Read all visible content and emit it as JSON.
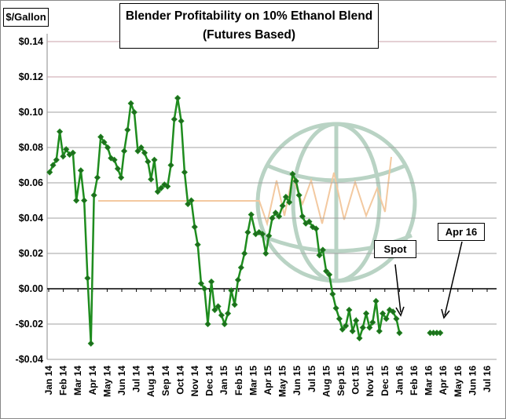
{
  "chart_data": {
    "type": "line",
    "title": "Blender Profitability on 10% Ethanol Blend",
    "subtitle": "(Futures Based)",
    "ylabel": "$/Gallon",
    "ylim": [
      -0.04,
      0.14
    ],
    "yticks": [
      0.14,
      0.12,
      0.1,
      0.08,
      0.06,
      0.04,
      0.02,
      0.0,
      -0.02,
      -0.04
    ],
    "ytick_labels": [
      "$0.14",
      "$0.12",
      "$0.10",
      "$0.08",
      "$0.06",
      "$0.04",
      "$0.02",
      "$0.00",
      "-$0.02",
      "-$0.04"
    ],
    "xtick_labels": [
      "Jan 14",
      "Feb 14",
      "Mar 14",
      "Apr 14",
      "May 14",
      "Jun 14",
      "Jul 14",
      "Aug 14",
      "Sep 14",
      "Oct 14",
      "Nov 14",
      "Dec 14",
      "Jan 15",
      "Feb 15",
      "Mar 15",
      "Apr 15",
      "May 15",
      "Jun 15",
      "Jul 15",
      "Aug 15",
      "Sep 15",
      "Oct 15",
      "Nov 15",
      "Dec 15",
      "Jan 16",
      "Feb 16",
      "Mar 16",
      "Apr 16",
      "May 16",
      "Jun 16",
      "Jul 16"
    ],
    "grid": true,
    "colors": {
      "series": "#1e8c1e",
      "marker": "#1f6b1f",
      "grid": "#a0a0a0",
      "grid_top": "#c9a0a8",
      "watermark": "#b9d3c4",
      "watermark_line": "#f3c9a0"
    },
    "annotations": [
      "Spot",
      "Apr 16"
    ],
    "series": [
      {
        "x": [
          "2014-01-03",
          "2014-01-10",
          "2014-01-17",
          "2014-01-24",
          "2014-01-31",
          "2014-02-07",
          "2014-02-14",
          "2014-02-21",
          "2014-02-28",
          "2014-03-07",
          "2014-03-14",
          "2014-03-21",
          "2014-03-28",
          "2014-04-04",
          "2014-04-11",
          "2014-04-18",
          "2014-04-25",
          "2014-05-02",
          "2014-05-09",
          "2014-05-16",
          "2014-05-23",
          "2014-05-30",
          "2014-06-06",
          "2014-06-13",
          "2014-06-20",
          "2014-06-27",
          "2014-07-04",
          "2014-07-11",
          "2014-07-18",
          "2014-07-25",
          "2014-08-01",
          "2014-08-08",
          "2014-08-15",
          "2014-08-22",
          "2014-08-29",
          "2014-09-05",
          "2014-09-12",
          "2014-09-19",
          "2014-09-26",
          "2014-10-03",
          "2014-10-10",
          "2014-10-17",
          "2014-10-24",
          "2014-10-31",
          "2014-11-07",
          "2014-11-14",
          "2014-11-21",
          "2014-11-28",
          "2014-12-05",
          "2014-12-12",
          "2014-12-19",
          "2014-12-26",
          "2015-01-02",
          "2015-01-09",
          "2015-01-16",
          "2015-01-23",
          "2015-01-30",
          "2015-02-06",
          "2015-02-13",
          "2015-02-20",
          "2015-02-27",
          "2015-03-06",
          "2015-03-13",
          "2015-03-20",
          "2015-03-27",
          "2015-04-03",
          "2015-04-10",
          "2015-04-17",
          "2015-04-24",
          "2015-05-01",
          "2015-05-08",
          "2015-05-15",
          "2015-05-22",
          "2015-05-29",
          "2015-06-05",
          "2015-06-12",
          "2015-06-19",
          "2015-06-26",
          "2015-07-03",
          "2015-07-10",
          "2015-07-17",
          "2015-07-24",
          "2015-07-31",
          "2015-08-07",
          "2015-08-14",
          "2015-08-21",
          "2015-08-28",
          "2015-09-04",
          "2015-09-11",
          "2015-09-18",
          "2015-09-25",
          "2015-10-02",
          "2015-10-09",
          "2015-10-16",
          "2015-10-23",
          "2015-10-30",
          "2015-11-06",
          "2015-11-13",
          "2015-11-20",
          "2015-11-27",
          "2015-12-04",
          "2015-12-11",
          "2015-12-18",
          "2015-12-25",
          "2016-01-01"
        ],
        "values": [
          0.066,
          0.07,
          0.073,
          0.089,
          0.075,
          0.079,
          0.076,
          0.077,
          0.05,
          0.067,
          0.05,
          0.006,
          -0.031,
          0.053,
          0.063,
          0.086,
          0.083,
          0.08,
          0.074,
          0.073,
          0.068,
          0.063,
          0.078,
          0.09,
          0.105,
          0.1,
          0.078,
          0.08,
          0.077,
          0.072,
          0.062,
          0.073,
          0.055,
          0.057,
          0.059,
          0.058,
          0.07,
          0.096,
          0.108,
          0.095,
          0.066,
          0.048,
          0.05,
          0.035,
          0.025,
          0.003,
          0.0,
          -0.02,
          0.004,
          -0.012,
          -0.01,
          -0.015,
          -0.02,
          -0.014,
          -0.001,
          -0.009,
          0.005,
          0.012,
          0.02,
          0.032,
          0.042,
          0.031,
          0.032,
          0.031,
          0.02,
          0.03,
          0.04,
          0.043,
          0.041,
          0.047,
          0.052,
          0.049,
          0.065,
          0.061,
          0.053,
          0.041,
          0.037,
          0.038,
          0.035,
          0.034,
          0.019,
          0.022,
          0.01,
          0.008,
          -0.003,
          -0.011,
          -0.017,
          -0.023,
          -0.021,
          -0.012,
          -0.024,
          -0.018,
          -0.028,
          -0.022,
          -0.014,
          -0.022,
          -0.019,
          -0.007,
          -0.024,
          -0.014,
          -0.017,
          -0.012,
          -0.013,
          -0.017,
          -0.025
        ]
      },
      {
        "x": [
          "2016-03-04",
          "2016-03-11",
          "2016-03-18",
          "2016-03-25"
        ],
        "values": [
          -0.025,
          -0.025,
          -0.025,
          -0.025
        ]
      }
    ]
  }
}
